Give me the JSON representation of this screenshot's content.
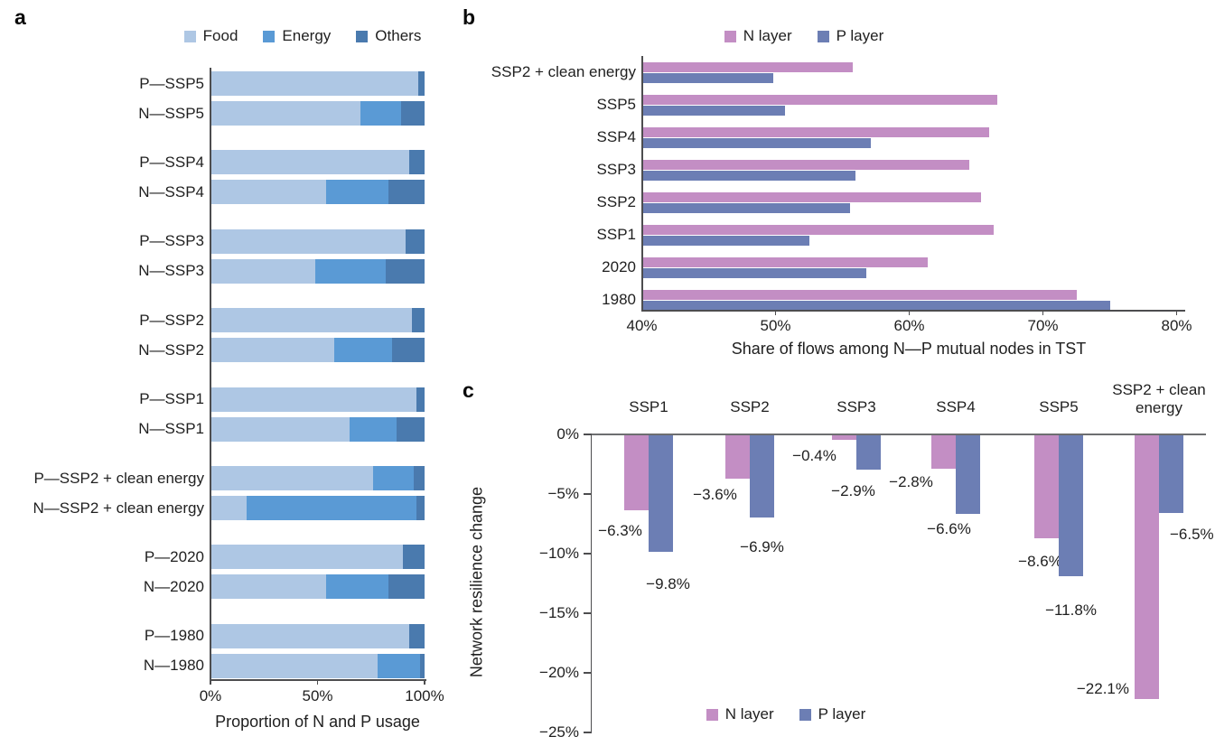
{
  "figure_title": "Multi-panel figure: N and P usage, flow shares, and network resilience",
  "panels": {
    "a_letter": "a",
    "b_letter": "b",
    "c_letter": "c"
  },
  "colors": {
    "food": "#aec7e4",
    "energy": "#5a9ad5",
    "others": "#4a7aae",
    "n_layer": "#c38ec4",
    "p_layer": "#6c7eb4",
    "axis": "#4d4d4f"
  },
  "chart_data": [
    {
      "id": "a",
      "type": "bar",
      "variant": "horizontal-stacked",
      "xlabel": "Proportion of N and P usage",
      "xlim": [
        0,
        100
      ],
      "xticks": [
        {
          "value": 0,
          "label": "0%"
        },
        {
          "value": 50,
          "label": "50%"
        },
        {
          "value": 100,
          "label": "100%"
        }
      ],
      "legend": [
        {
          "name": "Food",
          "color": "#aec7e4"
        },
        {
          "name": "Energy",
          "color": "#5a9ad5"
        },
        {
          "name": "Others",
          "color": "#4a7aae"
        }
      ],
      "group_size": 2,
      "rows": [
        {
          "label": "P—SSP5",
          "values": {
            "Food": 97,
            "Energy": 0,
            "Others": 3
          }
        },
        {
          "label": "N—SSP5",
          "values": {
            "Food": 70,
            "Energy": 19,
            "Others": 11
          }
        },
        {
          "label": "P—SSP4",
          "values": {
            "Food": 93,
            "Energy": 0,
            "Others": 7
          }
        },
        {
          "label": "N—SSP4",
          "values": {
            "Food": 54,
            "Energy": 29,
            "Others": 17
          }
        },
        {
          "label": "P—SSP3",
          "values": {
            "Food": 91,
            "Energy": 0,
            "Others": 9
          }
        },
        {
          "label": "N—SSP3",
          "values": {
            "Food": 49,
            "Energy": 33,
            "Others": 18
          }
        },
        {
          "label": "P—SSP2",
          "values": {
            "Food": 94,
            "Energy": 0,
            "Others": 6
          }
        },
        {
          "label": "N—SSP2",
          "values": {
            "Food": 58,
            "Energy": 27,
            "Others": 15
          }
        },
        {
          "label": "P—SSP1",
          "values": {
            "Food": 96,
            "Energy": 0,
            "Others": 4
          }
        },
        {
          "label": "N—SSP1",
          "values": {
            "Food": 65,
            "Energy": 22,
            "Others": 13
          }
        },
        {
          "label": "P—SSP2 + clean energy",
          "values": {
            "Food": 76,
            "Energy": 19,
            "Others": 5
          }
        },
        {
          "label": "N—SSP2 + clean energy",
          "values": {
            "Food": 17,
            "Energy": 79,
            "Others": 4
          }
        },
        {
          "label": "P—2020",
          "values": {
            "Food": 90,
            "Energy": 0,
            "Others": 10
          }
        },
        {
          "label": "N—2020",
          "values": {
            "Food": 54,
            "Energy": 29,
            "Others": 17
          }
        },
        {
          "label": "P—1980",
          "values": {
            "Food": 93,
            "Energy": 0,
            "Others": 7
          }
        },
        {
          "label": "N—1980",
          "values": {
            "Food": 78,
            "Energy": 20,
            "Others": 2
          }
        }
      ]
    },
    {
      "id": "b",
      "type": "bar",
      "variant": "horizontal-grouped",
      "xlabel": "Share of flows among N—P mutual nodes in TST",
      "xlim": [
        40,
        80
      ],
      "xticks": [
        {
          "value": 40,
          "label": "40%"
        },
        {
          "value": 50,
          "label": "50%"
        },
        {
          "value": 60,
          "label": "60%"
        },
        {
          "value": 70,
          "label": "70%"
        },
        {
          "value": 80,
          "label": "80%"
        }
      ],
      "legend": [
        {
          "name": "N layer",
          "color": "#c38ec4"
        },
        {
          "name": "P layer",
          "color": "#6c7eb4"
        }
      ],
      "categories": [
        "SSP2 + clean energy",
        "SSP5",
        "SSP4",
        "SSP3",
        "SSP2",
        "SSP1",
        "2020",
        "1980"
      ],
      "series": [
        {
          "name": "N layer",
          "values": [
            55.8,
            66.6,
            66.0,
            64.5,
            65.4,
            66.3,
            61.4,
            72.5
          ]
        },
        {
          "name": "P layer",
          "values": [
            49.8,
            50.7,
            57.1,
            56.0,
            55.6,
            52.5,
            56.8,
            75.0
          ]
        }
      ]
    },
    {
      "id": "c",
      "type": "bar",
      "variant": "vertical-grouped",
      "ylabel": "Network resilience change",
      "ylim": [
        -25,
        0
      ],
      "yticks": [
        {
          "value": 0,
          "label": "0%"
        },
        {
          "value": -5,
          "label": "−5%"
        },
        {
          "value": -10,
          "label": "−10%"
        },
        {
          "value": -15,
          "label": "−15%"
        },
        {
          "value": -20,
          "label": "−20%"
        },
        {
          "value": -25,
          "label": "−25%"
        }
      ],
      "legend": [
        {
          "name": "N layer",
          "color": "#c38ec4"
        },
        {
          "name": "P layer",
          "color": "#6c7eb4"
        }
      ],
      "categories": [
        "SSP1",
        "SSP2",
        "SSP3",
        "SSP4",
        "SSP5",
        "SSP2 + clean energy"
      ],
      "series": [
        {
          "name": "N layer",
          "values": [
            -6.3,
            -3.6,
            -0.4,
            -2.8,
            -8.6,
            -22.1
          ],
          "labels": [
            "−6.3%",
            "−3.6%",
            "−0.4%",
            "−2.8%",
            "−8.6%",
            "−22.1%"
          ]
        },
        {
          "name": "P layer",
          "values": [
            -9.8,
            -6.9,
            -2.9,
            -6.6,
            -11.8,
            -6.5
          ],
          "labels": [
            "−9.8%",
            "−6.9%",
            "−2.9%",
            "−6.6%",
            "−11.8%",
            "−6.5%"
          ]
        }
      ]
    }
  ]
}
